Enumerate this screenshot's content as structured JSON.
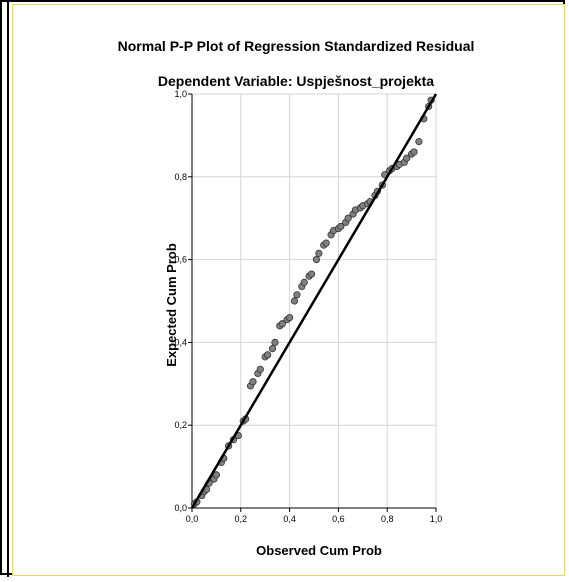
{
  "chart_data": {
    "type": "scatter",
    "title": "Normal P-P Plot of Regression Standardized Residual",
    "subtitle": "Dependent Variable: Uspješnost_projekta",
    "xlabel": "Observed Cum Prob",
    "ylabel": "Expected Cum Prob",
    "xlim": [
      0,
      1
    ],
    "ylim": [
      0,
      1
    ],
    "x_ticks": [
      "0,0",
      "0,2",
      "0,4",
      "0,6",
      "0,8",
      "1,0"
    ],
    "y_ticks": [
      "0,0",
      "0,2",
      "0,4",
      "0,6",
      "0,8",
      "1,0"
    ],
    "grid": true,
    "reference_line": [
      [
        0,
        0
      ],
      [
        1,
        1
      ]
    ],
    "marker_color": "#808080",
    "line_color": "#000000",
    "points": [
      [
        0.01,
        0.01
      ],
      [
        0.02,
        0.015
      ],
      [
        0.04,
        0.03
      ],
      [
        0.05,
        0.04
      ],
      [
        0.06,
        0.045
      ],
      [
        0.07,
        0.06
      ],
      [
        0.09,
        0.07
      ],
      [
        0.1,
        0.08
      ],
      [
        0.12,
        0.11
      ],
      [
        0.13,
        0.12
      ],
      [
        0.15,
        0.15
      ],
      [
        0.17,
        0.165
      ],
      [
        0.19,
        0.175
      ],
      [
        0.21,
        0.21
      ],
      [
        0.22,
        0.215
      ],
      [
        0.24,
        0.295
      ],
      [
        0.25,
        0.305
      ],
      [
        0.27,
        0.325
      ],
      [
        0.28,
        0.335
      ],
      [
        0.3,
        0.365
      ],
      [
        0.31,
        0.37
      ],
      [
        0.33,
        0.385
      ],
      [
        0.34,
        0.4
      ],
      [
        0.36,
        0.44
      ],
      [
        0.37,
        0.445
      ],
      [
        0.39,
        0.455
      ],
      [
        0.4,
        0.46
      ],
      [
        0.42,
        0.5
      ],
      [
        0.43,
        0.515
      ],
      [
        0.45,
        0.535
      ],
      [
        0.46,
        0.545
      ],
      [
        0.48,
        0.56
      ],
      [
        0.49,
        0.565
      ],
      [
        0.51,
        0.6
      ],
      [
        0.52,
        0.615
      ],
      [
        0.54,
        0.635
      ],
      [
        0.55,
        0.64
      ],
      [
        0.57,
        0.66
      ],
      [
        0.58,
        0.67
      ],
      [
        0.6,
        0.675
      ],
      [
        0.61,
        0.68
      ],
      [
        0.63,
        0.69
      ],
      [
        0.64,
        0.7
      ],
      [
        0.66,
        0.71
      ],
      [
        0.67,
        0.72
      ],
      [
        0.69,
        0.725
      ],
      [
        0.7,
        0.73
      ],
      [
        0.72,
        0.735
      ],
      [
        0.73,
        0.74
      ],
      [
        0.75,
        0.755
      ],
      [
        0.76,
        0.765
      ],
      [
        0.78,
        0.78
      ],
      [
        0.79,
        0.805
      ],
      [
        0.81,
        0.815
      ],
      [
        0.82,
        0.82
      ],
      [
        0.84,
        0.825
      ],
      [
        0.85,
        0.83
      ],
      [
        0.87,
        0.835
      ],
      [
        0.88,
        0.845
      ],
      [
        0.9,
        0.855
      ],
      [
        0.91,
        0.86
      ],
      [
        0.93,
        0.885
      ],
      [
        0.95,
        0.94
      ],
      [
        0.97,
        0.97
      ],
      [
        0.98,
        0.985
      ]
    ]
  }
}
